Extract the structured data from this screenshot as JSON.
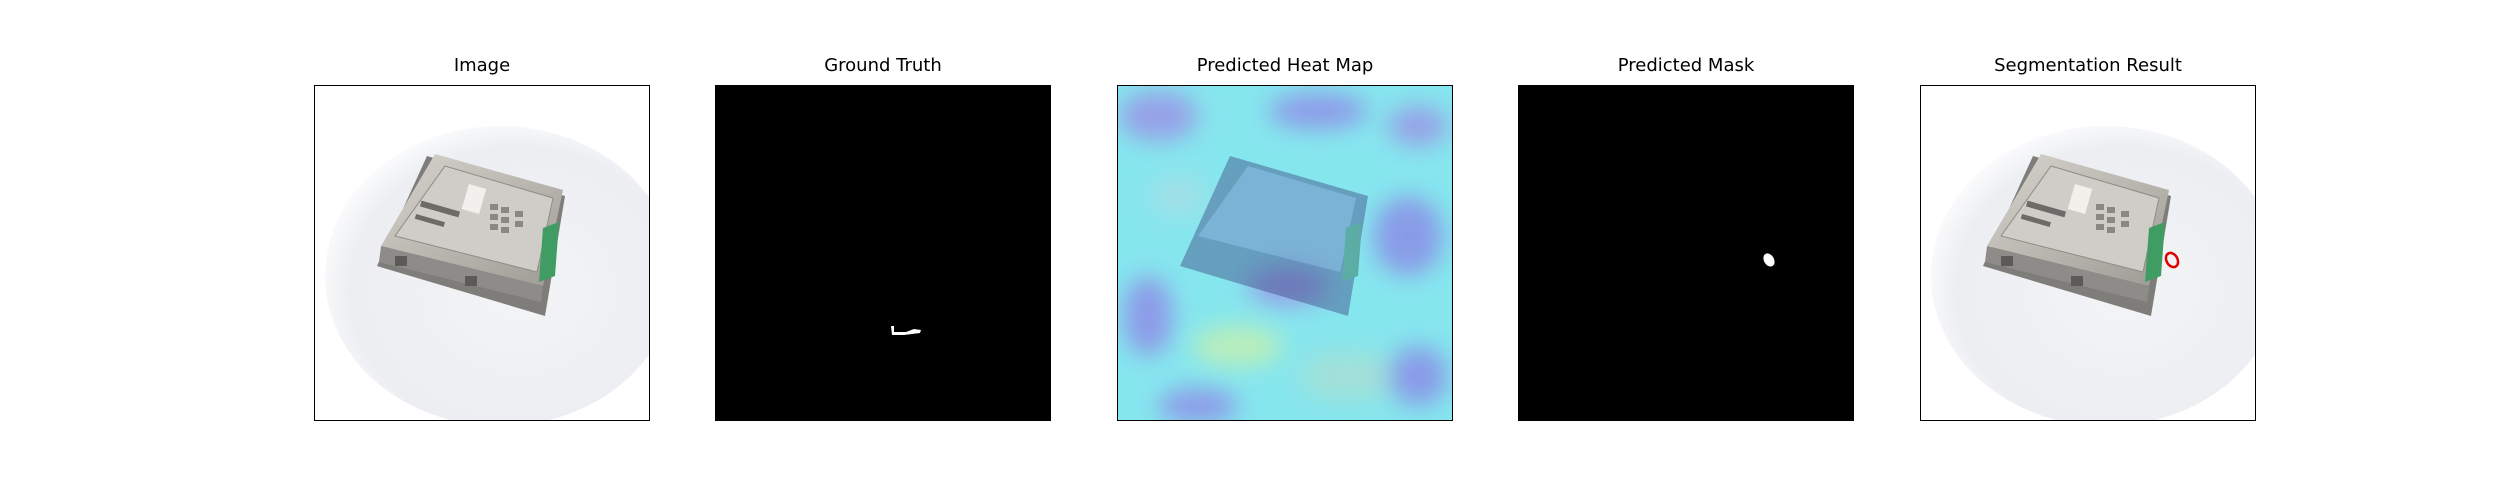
{
  "panels": [
    {
      "title": "Image"
    },
    {
      "title": "Ground Truth"
    },
    {
      "title": "Predicted Heat Map"
    },
    {
      "title": "Predicted Mask"
    },
    {
      "title": "Segmentation Result"
    }
  ],
  "colors": {
    "mask_background": "#000000",
    "mask_foreground": "#ffffff",
    "segmentation_outline": "#e00000",
    "heatmap_base": "#7ee8ef",
    "device_body": "#b9b6b0",
    "connector": "#3f9c63"
  }
}
